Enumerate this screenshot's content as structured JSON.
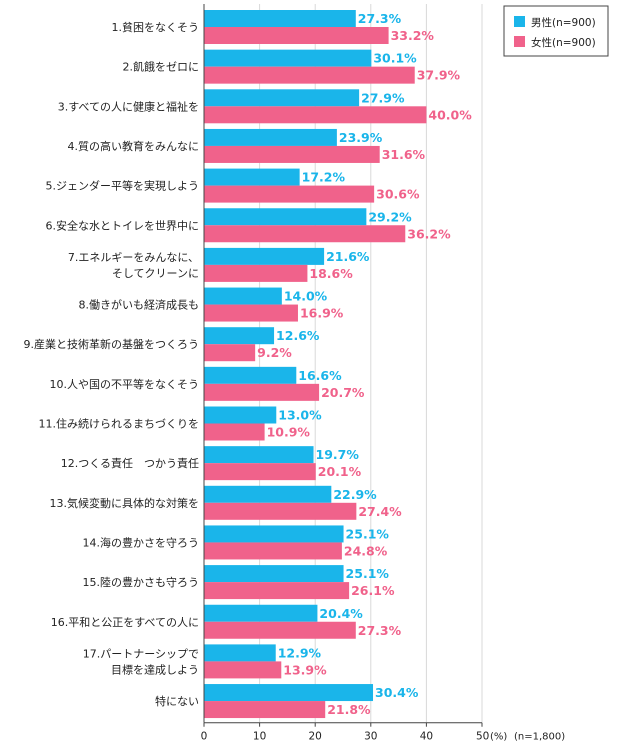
{
  "chart_data": {
    "type": "bar",
    "orientation": "horizontal",
    "categories": [
      [
        "1.貧困をなくそう"
      ],
      [
        "2.飢餓をゼロに"
      ],
      [
        "3.すべての人に健康と福祉を"
      ],
      [
        "4.質の高い教育をみんなに"
      ],
      [
        "5.ジェンダー平等を実現しよう"
      ],
      [
        "6.安全な水とトイレを世界中に"
      ],
      [
        "7.エネルギーをみんなに、",
        "そしてクリーンに"
      ],
      [
        "8.働きがいも経済成長も"
      ],
      [
        "9.産業と技術革新の基盤をつくろう"
      ],
      [
        "10.人や国の不平等をなくそう"
      ],
      [
        "11.住み続けられるまちづくりを"
      ],
      [
        "12.つくる責任　つかう責任"
      ],
      [
        "13.気候変動に具体的な対策を"
      ],
      [
        "14.海の豊かさを守ろう"
      ],
      [
        "15.陸の豊かさも守ろう"
      ],
      [
        "16.平和と公正をすべての人に"
      ],
      [
        "17.パートナーシップで",
        "目標を達成しよう"
      ],
      [
        "特にない"
      ]
    ],
    "series": [
      {
        "name": "男性(n=900)",
        "color": "#1ab5ea",
        "values": [
          27.3,
          30.1,
          27.9,
          23.9,
          17.2,
          29.2,
          21.6,
          14.0,
          12.6,
          16.6,
          13.0,
          19.7,
          22.9,
          25.1,
          25.1,
          20.4,
          12.9,
          30.4
        ]
      },
      {
        "name": "女性(n=900)",
        "color": "#f0628b",
        "values": [
          33.2,
          37.9,
          40.0,
          31.6,
          30.6,
          36.2,
          18.6,
          16.9,
          9.2,
          20.7,
          10.9,
          20.1,
          27.4,
          24.8,
          26.1,
          27.3,
          13.9,
          21.8
        ]
      }
    ],
    "value_suffix": "%",
    "xlim": [
      0,
      50
    ],
    "xticks": [
      0,
      10,
      20,
      30,
      40,
      50
    ],
    "unit_label": "(%)",
    "sample_note": "(n=1,800)",
    "legend_position": "top-right",
    "grid": true
  }
}
